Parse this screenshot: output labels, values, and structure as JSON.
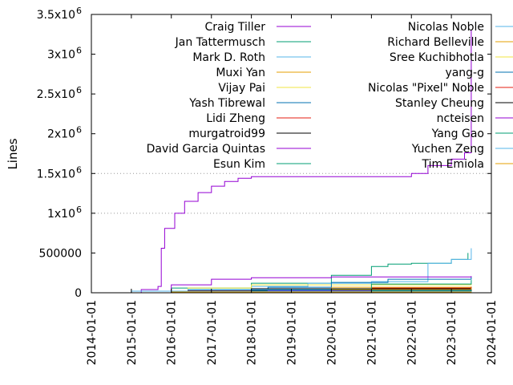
{
  "chart_data": {
    "type": "line",
    "title": "",
    "xlabel": "",
    "ylabel": "Lines",
    "ylim": [
      0,
      3500000
    ],
    "xlim": [
      "2014-01-01",
      "2024-01-01"
    ],
    "grid": "dotted horizontal lines at 1.5x10^6 and 1x10^6",
    "legend_placement": "top, two columns",
    "x_ticks": [
      "2014-01-01",
      "2015-01-01",
      "2016-01-01",
      "2017-01-01",
      "2018-01-01",
      "2019-01-01",
      "2020-01-01",
      "2021-01-01",
      "2022-01-01",
      "2023-01-01",
      "2024-01-01"
    ],
    "y_ticks": [
      {
        "value": 0,
        "base": "0",
        "exp": ""
      },
      {
        "value": 500000,
        "base": "500000",
        "exp": ""
      },
      {
        "value": 1000000,
        "base": "1x10",
        "exp": "6"
      },
      {
        "value": 1500000,
        "base": "1.5x10",
        "exp": "6"
      },
      {
        "value": 2000000,
        "base": "2x10",
        "exp": "6"
      },
      {
        "value": 2500000,
        "base": "2.5x10",
        "exp": "6"
      },
      {
        "value": 3000000,
        "base": "3x10",
        "exp": "6"
      },
      {
        "value": 3500000,
        "base": "3.5x10",
        "exp": "6"
      }
    ],
    "series": [
      {
        "name": "Craig Tiller",
        "color": "#9400d3",
        "points": [
          [
            "2015-02-01",
            0
          ],
          [
            "2015-04-01",
            40000
          ],
          [
            "2015-09-01",
            80000
          ],
          [
            "2015-10-01",
            560000
          ],
          [
            "2015-11-01",
            810000
          ],
          [
            "2016-02-01",
            1000000
          ],
          [
            "2016-05-01",
            1150000
          ],
          [
            "2016-09-01",
            1260000
          ],
          [
            "2017-01-01",
            1340000
          ],
          [
            "2017-05-01",
            1400000
          ],
          [
            "2017-09-01",
            1440000
          ],
          [
            "2018-01-01",
            1460000
          ],
          [
            "2019-06-01",
            1460000
          ],
          [
            "2021-06-01",
            1460000
          ],
          [
            "2022-01-01",
            1500000
          ],
          [
            "2022-06-01",
            1600000
          ],
          [
            "2023-01-01",
            1680000
          ],
          [
            "2023-05-01",
            1760000
          ],
          [
            "2023-07-01",
            3300000
          ]
        ]
      },
      {
        "name": "Jan Tattermusch",
        "color": "#009e73",
        "points": [
          [
            "2015-02-01",
            0
          ],
          [
            "2016-01-01",
            60000
          ],
          [
            "2018-01-01",
            120000
          ],
          [
            "2020-01-01",
            220000
          ],
          [
            "2021-01-01",
            330000
          ],
          [
            "2021-06-01",
            360000
          ],
          [
            "2022-01-01",
            370000
          ],
          [
            "2023-01-01",
            420000
          ],
          [
            "2023-06-01",
            500000
          ]
        ]
      },
      {
        "name": "Mark D. Roth",
        "color": "#56b4e9",
        "points": [
          [
            "2015-03-01",
            0
          ],
          [
            "2016-06-01",
            40000
          ],
          [
            "2018-01-01",
            80000
          ],
          [
            "2019-06-01",
            120000
          ],
          [
            "2021-01-01",
            140000
          ],
          [
            "2022-06-01",
            370000
          ],
          [
            "2023-01-01",
            420000
          ],
          [
            "2023-07-01",
            560000
          ]
        ]
      },
      {
        "name": "Muxi Yan",
        "color": "#e69f00",
        "points": [
          [
            "2016-06-01",
            0
          ],
          [
            "2018-01-01",
            40000
          ],
          [
            "2020-01-01",
            70000
          ],
          [
            "2023-07-01",
            80000
          ]
        ]
      },
      {
        "name": "Vijay Pai",
        "color": "#f0e442",
        "points": [
          [
            "2015-01-01",
            0
          ],
          [
            "2016-06-01",
            60000
          ],
          [
            "2018-01-01",
            100000
          ],
          [
            "2023-07-01",
            110000
          ]
        ]
      },
      {
        "name": "Yash Tibrewal",
        "color": "#0072b2",
        "points": [
          [
            "2017-06-01",
            0
          ],
          [
            "2018-06-01",
            70000
          ],
          [
            "2020-01-01",
            130000
          ],
          [
            "2021-06-01",
            170000
          ],
          [
            "2023-07-01",
            200000
          ]
        ]
      },
      {
        "name": "Lidi Zheng",
        "color": "#e51e10",
        "points": [
          [
            "2018-06-01",
            0
          ],
          [
            "2019-06-01",
            40000
          ],
          [
            "2021-01-01",
            60000
          ],
          [
            "2023-07-01",
            70000
          ]
        ]
      },
      {
        "name": "murgatroid99",
        "color": "#000000",
        "points": [
          [
            "2015-01-01",
            0
          ],
          [
            "2016-06-01",
            30000
          ],
          [
            "2018-01-01",
            50000
          ],
          [
            "2023-07-01",
            60000
          ]
        ]
      },
      {
        "name": "David Garcia Quintas",
        "color": "#9400d3",
        "points": [
          [
            "2015-01-01",
            0
          ],
          [
            "2016-01-01",
            100000
          ],
          [
            "2017-01-01",
            170000
          ],
          [
            "2018-01-01",
            190000
          ],
          [
            "2020-01-01",
            200000
          ],
          [
            "2023-07-01",
            210000
          ]
        ]
      },
      {
        "name": "Esun Kim",
        "color": "#009e73",
        "points": [
          [
            "2017-01-01",
            0
          ],
          [
            "2018-06-01",
            40000
          ],
          [
            "2021-01-01",
            110000
          ],
          [
            "2023-07-01",
            160000
          ]
        ]
      },
      {
        "name": "Nicolas Noble",
        "color": "#56b4e9",
        "points": [
          [
            "2014-11-01",
            0
          ],
          [
            "2015-01-01",
            20000
          ],
          [
            "2016-06-01",
            40000
          ],
          [
            "2023-07-01",
            45000
          ]
        ]
      },
      {
        "name": "Richard Belleville",
        "color": "#e69f00",
        "points": [
          [
            "2018-06-01",
            0
          ],
          [
            "2020-01-01",
            40000
          ],
          [
            "2023-07-01",
            60000
          ]
        ]
      },
      {
        "name": "Sree Kuchibhotla",
        "color": "#f0e442",
        "points": [
          [
            "2016-01-01",
            0
          ],
          [
            "2017-06-01",
            30000
          ],
          [
            "2023-07-01",
            40000
          ]
        ]
      },
      {
        "name": "yang-g",
        "color": "#0072b2",
        "points": [
          [
            "2015-01-01",
            0
          ],
          [
            "2016-06-01",
            30000
          ],
          [
            "2023-07-01",
            40000
          ]
        ]
      },
      {
        "name": "Nicolas \"Pixel\" Noble",
        "color": "#e51e10",
        "points": [
          [
            "2015-01-01",
            0
          ],
          [
            "2016-06-01",
            20000
          ],
          [
            "2023-07-01",
            30000
          ]
        ]
      },
      {
        "name": "Stanley Cheung",
        "color": "#000000",
        "points": [
          [
            "2015-06-01",
            0
          ],
          [
            "2018-01-01",
            20000
          ],
          [
            "2023-07-01",
            35000
          ]
        ]
      },
      {
        "name": "ncteisen",
        "color": "#9400d3",
        "points": [
          [
            "2017-06-01",
            0
          ],
          [
            "2018-06-01",
            20000
          ],
          [
            "2023-07-01",
            25000
          ]
        ]
      },
      {
        "name": "Yang Gao",
        "color": "#009e73",
        "points": [
          [
            "2019-06-01",
            0
          ],
          [
            "2021-01-01",
            20000
          ],
          [
            "2023-07-01",
            30000
          ]
        ]
      },
      {
        "name": "Yuchen Zeng",
        "color": "#56b4e9",
        "points": [
          [
            "2015-06-01",
            0
          ],
          [
            "2016-06-01",
            15000
          ],
          [
            "2023-07-01",
            20000
          ]
        ]
      },
      {
        "name": "Tim Emiola",
        "color": "#e69f00",
        "points": [
          [
            "2015-01-01",
            0
          ],
          [
            "2016-01-01",
            10000
          ],
          [
            "2023-07-01",
            15000
          ]
        ]
      }
    ]
  }
}
